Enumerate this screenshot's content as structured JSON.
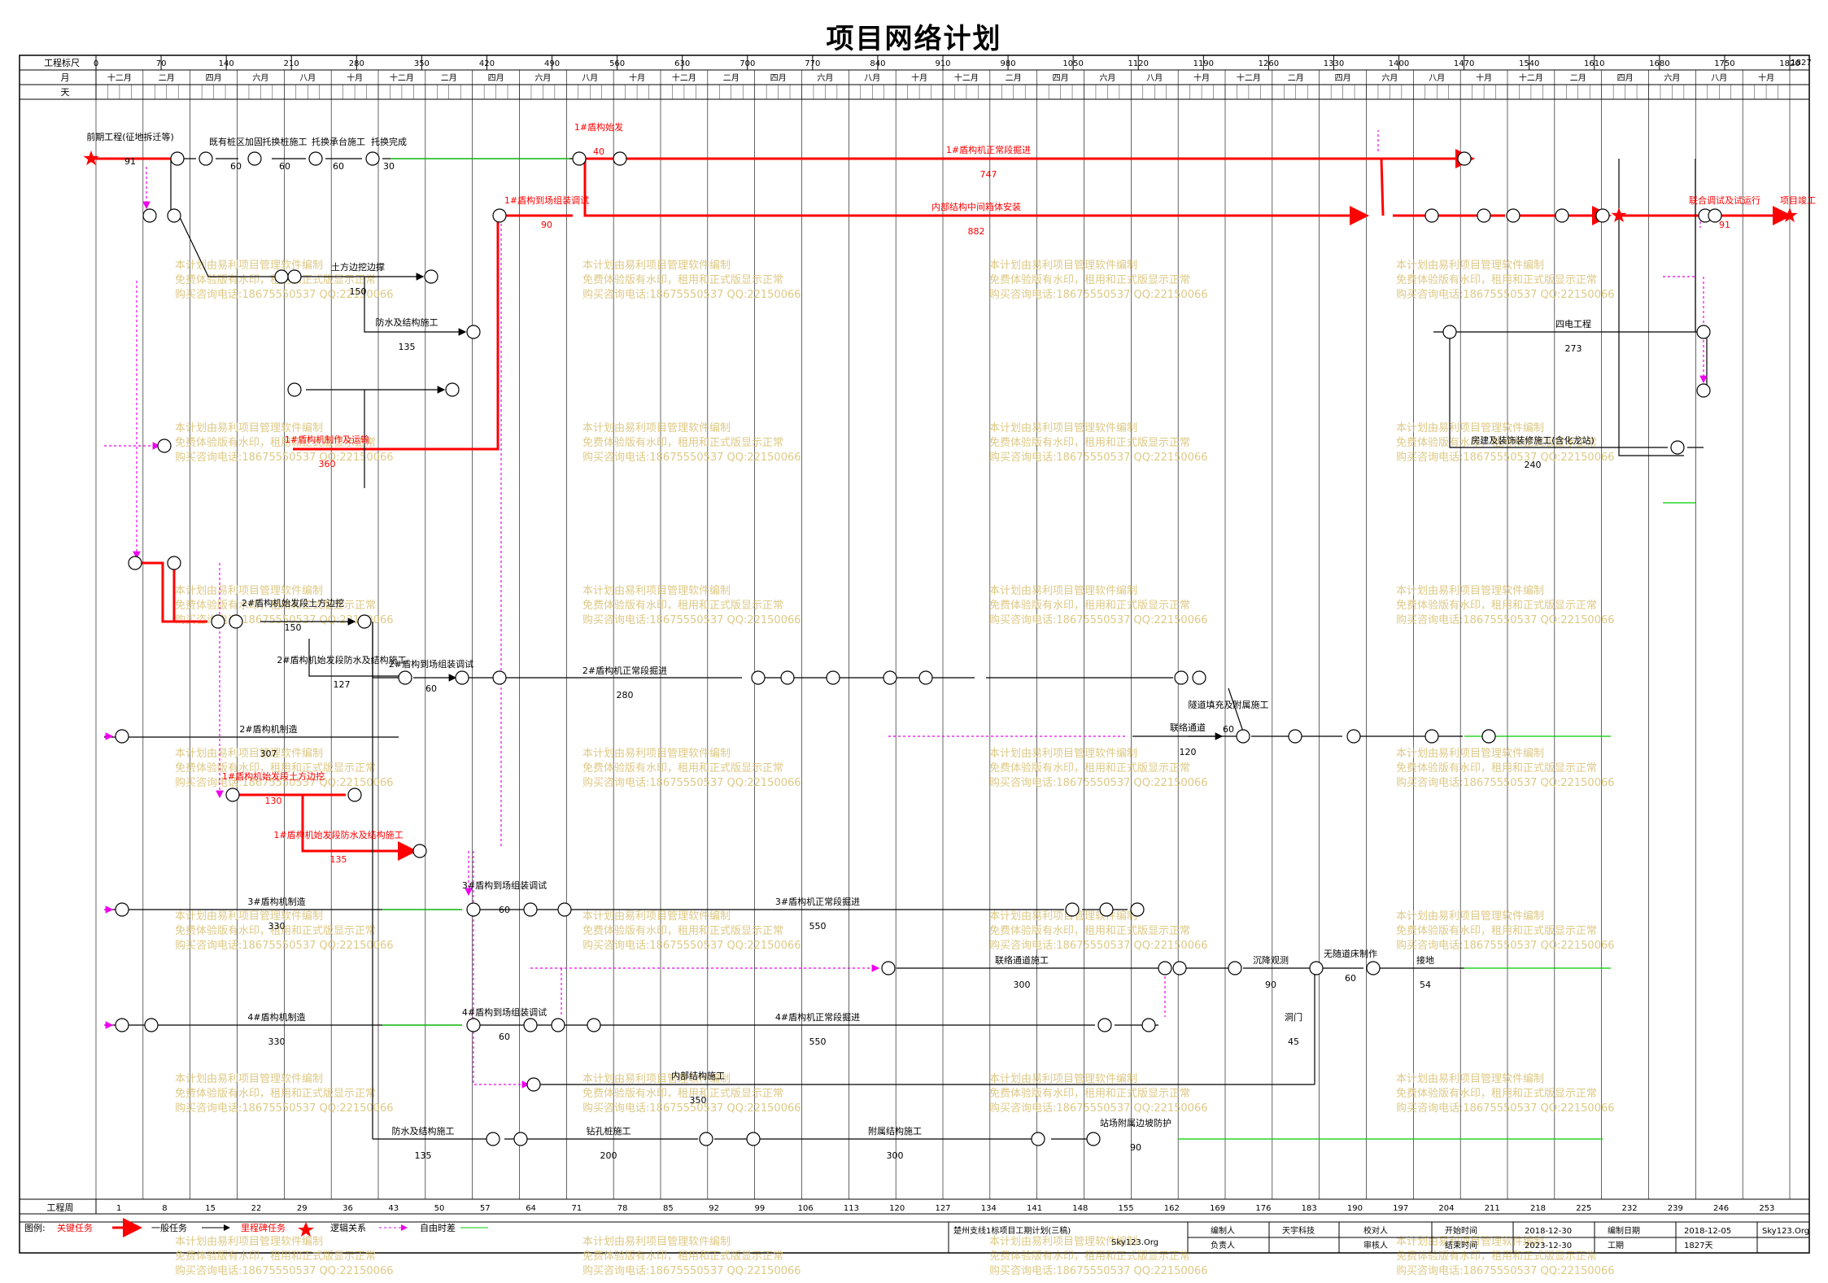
{
  "title": "项目网络计划",
  "scale": {
    "row1_label": "工程标尺",
    "row2_label": "月",
    "row3_label": "天",
    "bottom_label": "工程周",
    "ticks": [
      "0",
      "70",
      "140",
      "210",
      "280",
      "350",
      "420",
      "490",
      "560",
      "630",
      "700",
      "770",
      "840",
      "910",
      "980",
      "1050",
      "1120",
      "1190",
      "1260",
      "1330",
      "1400",
      "1470",
      "1540",
      "1610",
      "1680",
      "1750",
      "1820"
    ],
    "end_tick": "1827",
    "months": [
      "十二月",
      "二月",
      "四月",
      "六月",
      "八月",
      "十月",
      "十二月",
      "二月",
      "四月",
      "六月",
      "八月",
      "十月",
      "十二月",
      "二月",
      "四月",
      "六月",
      "八月",
      "十月",
      "十二月",
      "二月",
      "四月",
      "六月",
      "八月",
      "十月",
      "十二月",
      "二月",
      "四月",
      "六月",
      "八月",
      "十月",
      "十二月",
      "二月",
      "四月",
      "六月",
      "八月",
      "十月"
    ],
    "weeks": [
      "1",
      "8",
      "15",
      "22",
      "29",
      "36",
      "43",
      "50",
      "57",
      "64",
      "71",
      "78",
      "85",
      "92",
      "99",
      "106",
      "113",
      "120",
      "127",
      "134",
      "141",
      "148",
      "155",
      "162",
      "169",
      "176",
      "183",
      "190",
      "197",
      "204",
      "211",
      "218",
      "225",
      "232",
      "239",
      "246",
      "253"
    ]
  },
  "activities": [
    {
      "label": "前期工程(征地拆迁等)",
      "dur": "91"
    },
    {
      "label": "1#盾构机正常段掘进",
      "dur": "747"
    },
    {
      "label": "内部结构中间箱体安装",
      "dur": "882"
    },
    {
      "label": "1#盾构到场组装调试",
      "dur": "90"
    },
    {
      "label": "1#盾构始发",
      "dur": "40"
    },
    {
      "label": "托换桩施工",
      "dur": "60"
    },
    {
      "label": "托换承台施工",
      "dur": "60"
    },
    {
      "label": "托换完成",
      "dur": "30"
    },
    {
      "label": "既有桩区加固",
      "dur": "60"
    },
    {
      "label": "土方边挖边撑",
      "dur": "150"
    },
    {
      "label": "防水及结构施工",
      "dur": "135"
    },
    {
      "label": "1#盾构机制作及运输",
      "dur": "360"
    },
    {
      "label": "2#盾构机始发段土方边挖",
      "dur": "150"
    },
    {
      "label": "2#盾构机始发段防水及结构施工",
      "dur": "127"
    },
    {
      "label": "2#盾构到场组装调试",
      "dur": "60"
    },
    {
      "label": "2#盾构机正常段掘进",
      "dur": "280"
    },
    {
      "label": "2#盾构机制造",
      "dur": "307"
    },
    {
      "label": "1#盾构机始发段土方边挖",
      "dur": "130"
    },
    {
      "label": "1#盾构机始发段防水及结构施工",
      "dur": "135"
    },
    {
      "label": "3#盾构机制造",
      "dur": "330"
    },
    {
      "label": "3#盾构到场组装调试",
      "dur": "60"
    },
    {
      "label": "3#盾构机正常段掘进",
      "dur": "550"
    },
    {
      "label": "4#盾构机制造",
      "dur": "330"
    },
    {
      "label": "4#盾构到场组装调试",
      "dur": "60"
    },
    {
      "label": "4#盾构机正常段掘进",
      "dur": "550"
    },
    {
      "label": "内部结构施工",
      "dur": "350"
    },
    {
      "label": "防水及结构施工",
      "dur": "135"
    },
    {
      "label": "钻孔桩施工",
      "dur": "200"
    },
    {
      "label": "附属结构施工",
      "dur": "300"
    },
    {
      "label": "联络通道",
      "dur": "120"
    },
    {
      "label": "联络通道施工",
      "dur": "300"
    },
    {
      "label": "沉降观测",
      "dur": "90"
    },
    {
      "label": "无随道床制作",
      "dur": "60"
    },
    {
      "label": "接地",
      "dur": "54"
    },
    {
      "label": "四电工程",
      "dur": "273"
    },
    {
      "label": "房建及装饰装修施工(含化龙站)",
      "dur": "240"
    },
    {
      "label": "联合调试及试运行",
      "dur": "91"
    },
    {
      "label": "项目竣工",
      "dur": ""
    },
    {
      "label": "洞门",
      "dur": "45"
    },
    {
      "label": "隧道填充及附属施工",
      "dur": "60"
    },
    {
      "label": "站场附属边坡防护",
      "dur": "90"
    }
  ],
  "watermark": [
    "本计划由易利项目管理软件编制",
    "免费体验版有水印，租用和正式版显示正常",
    "购买咨询电话:18675550537 QQ:22150066"
  ],
  "legend": {
    "label": "图例:",
    "items": [
      "关键任务",
      "一般任务",
      "里程碑任务",
      "逻辑关系",
      "自由时差"
    ]
  },
  "footer": {
    "project": "楚州支线1标项目工期计划(三稿)",
    "site": "Sky123.Org",
    "maker_label": "编制人",
    "maker": "天宇科技",
    "checker_label": "校对人",
    "start_label": "开始时间",
    "start": "2018-12-30",
    "date_label": "编制日期",
    "date": "2018-12-05",
    "site2": "Sky123.Org",
    "owner_label": "负责人",
    "reviewer_label": "审核人",
    "end_label": "结束时间",
    "end": "2023-12-30",
    "dur_label": "工期",
    "dur": "1827天"
  }
}
